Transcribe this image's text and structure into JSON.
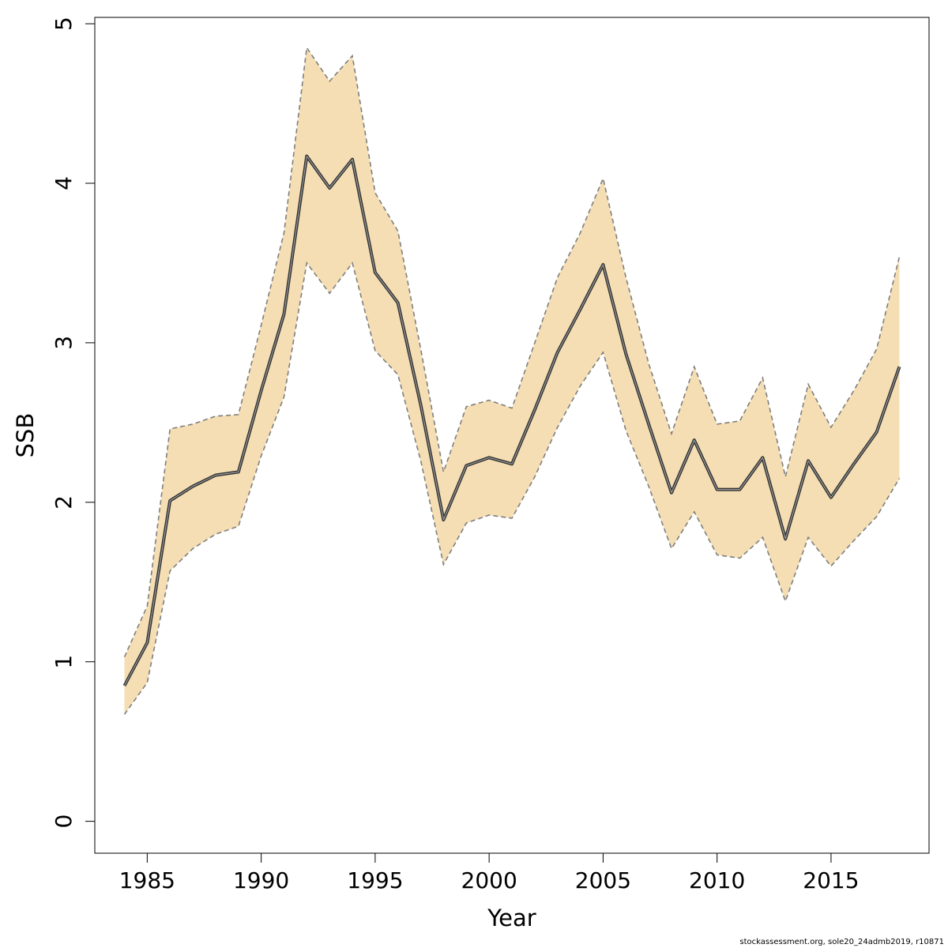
{
  "chart_data": {
    "type": "area",
    "xlabel": "Year",
    "ylabel": "SSB",
    "xlim": [
      1982.7,
      2019.3
    ],
    "ylim": [
      -0.2,
      5.04
    ],
    "x_ticks": [
      1985,
      1990,
      1995,
      2000,
      2005,
      2010,
      2015
    ],
    "y_ticks": [
      0,
      1,
      2,
      3,
      4,
      5
    ],
    "grid": false,
    "colors": {
      "band_fill": "#f5deb3",
      "band_border": "#7f7f7f",
      "line_outer": "#333333",
      "line_inner": "#9a9a9a"
    },
    "x": [
      1984,
      1985,
      1986,
      1987,
      1988,
      1989,
      1990,
      1991,
      1992,
      1993,
      1994,
      1995,
      1996,
      1997,
      1998,
      1999,
      2000,
      2001,
      2002,
      2003,
      2004,
      2005,
      2006,
      2007,
      2008,
      2009,
      2010,
      2011,
      2012,
      2013,
      2014,
      2015,
      2016,
      2017,
      2018
    ],
    "series": [
      {
        "role": "estimate",
        "values": [
          0.85,
          1.12,
          2.01,
          2.1,
          2.17,
          2.19,
          2.7,
          3.18,
          4.17,
          3.97,
          4.15,
          3.44,
          3.25,
          2.61,
          1.89,
          2.23,
          2.28,
          2.24,
          2.58,
          2.94,
          3.21,
          3.49,
          2.93,
          2.49,
          2.06,
          2.39,
          2.08,
          2.08,
          2.28,
          1.77,
          2.26,
          2.03,
          2.24,
          2.44,
          2.85
        ]
      },
      {
        "role": "upper",
        "values": [
          1.03,
          1.35,
          2.46,
          2.49,
          2.54,
          2.55,
          3.11,
          3.69,
          4.85,
          4.64,
          4.8,
          3.94,
          3.7,
          2.96,
          2.19,
          2.6,
          2.64,
          2.59,
          3.0,
          3.41,
          3.69,
          4.03,
          3.41,
          2.87,
          2.43,
          2.85,
          2.49,
          2.51,
          2.78,
          2.16,
          2.74,
          2.47,
          2.7,
          2.96,
          3.54
        ]
      },
      {
        "role": "lower",
        "values": [
          0.67,
          0.87,
          1.57,
          1.71,
          1.8,
          1.85,
          2.29,
          2.66,
          3.5,
          3.31,
          3.5,
          2.95,
          2.8,
          2.26,
          1.61,
          1.87,
          1.92,
          1.9,
          2.16,
          2.47,
          2.73,
          2.94,
          2.45,
          2.1,
          1.71,
          1.94,
          1.67,
          1.65,
          1.78,
          1.38,
          1.78,
          1.6,
          1.76,
          1.91,
          2.15
        ]
      }
    ],
    "footnote": "stockassessment.org, sole20_24admb2019, r10871"
  }
}
